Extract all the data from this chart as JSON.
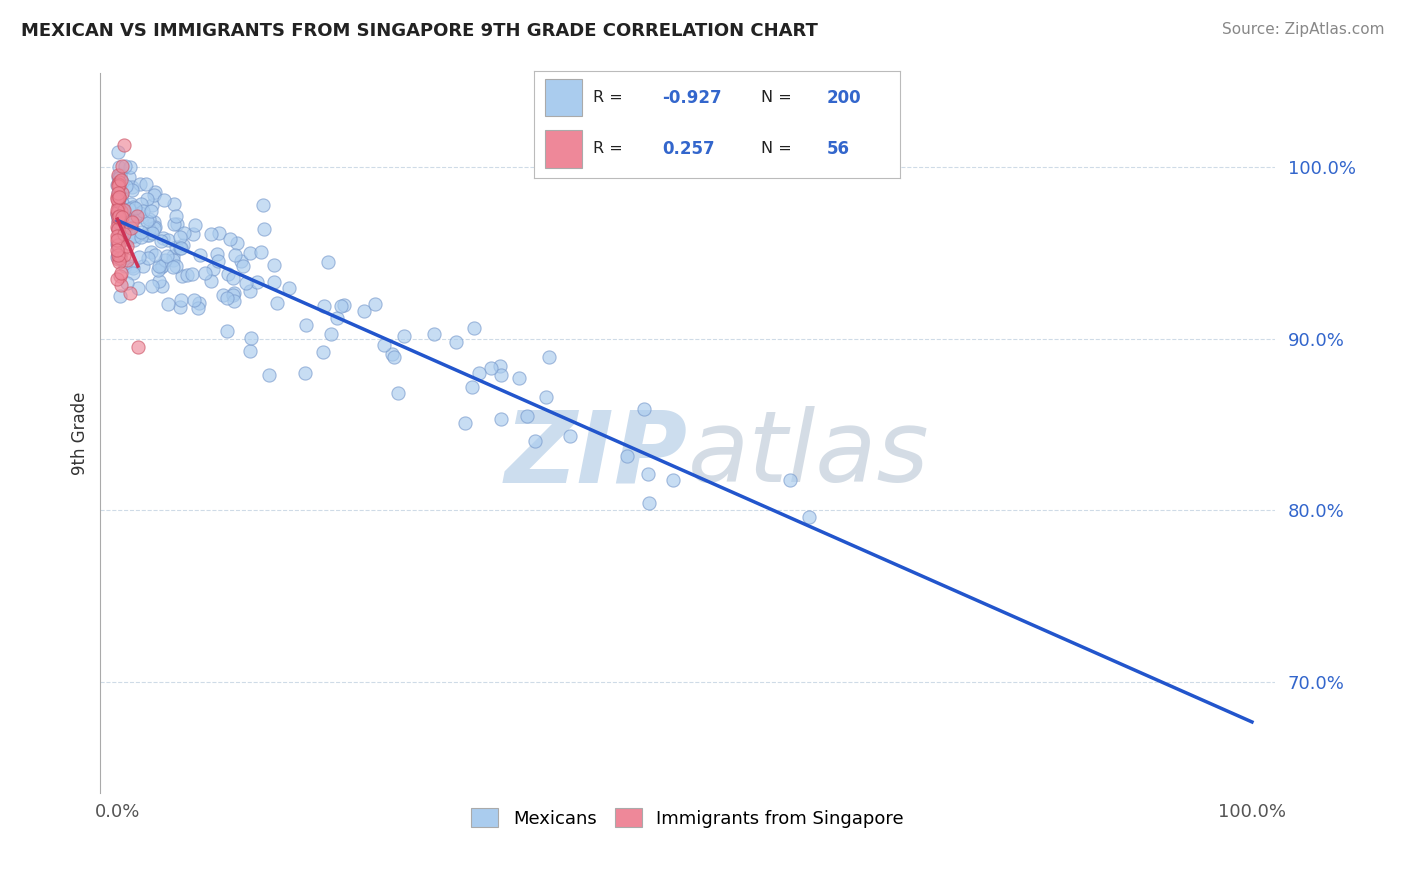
{
  "title": "MEXICAN VS IMMIGRANTS FROM SINGAPORE 9TH GRADE CORRELATION CHART",
  "source": "Source: ZipAtlas.com",
  "ylabel": "9th Grade",
  "blue_R": -0.927,
  "blue_N": 200,
  "pink_R": 0.257,
  "pink_N": 56,
  "blue_color": "#aaccee",
  "pink_color": "#ee8899",
  "blue_edge": "#7799cc",
  "pink_edge": "#cc5566",
  "line_blue_color": "#2255cc",
  "line_pink_color": "#cc3355",
  "watermark_color": "#ccddee",
  "background_color": "#ffffff",
  "grid_color": "#bbccdd",
  "ytick_color": "#3366cc",
  "xtick_color": "#555555",
  "title_color": "#222222",
  "source_color": "#888888",
  "ylabel_color": "#333333"
}
